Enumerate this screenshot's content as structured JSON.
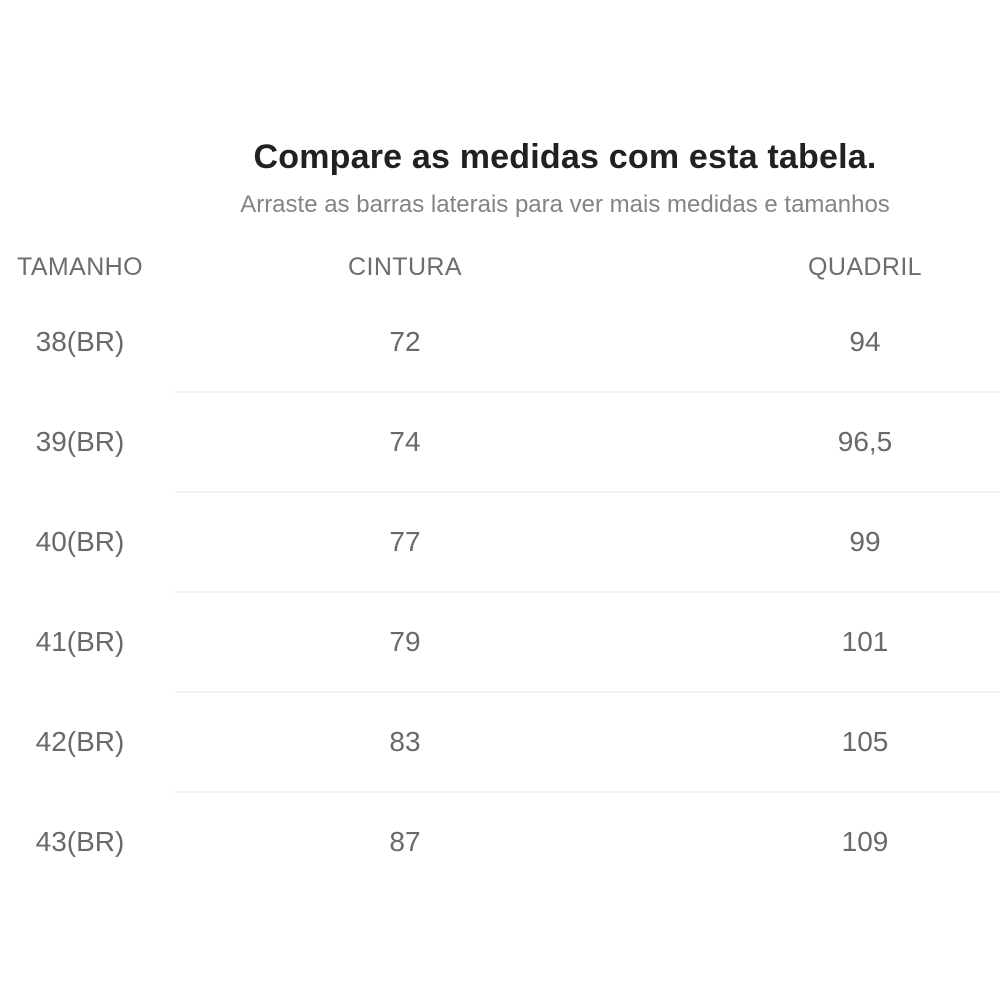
{
  "header": {
    "title": "Compare as medidas com esta tabela.",
    "subtitle": "Arraste as barras laterais para ver mais medidas e tamanhos"
  },
  "table": {
    "columns": [
      "TAMANHO",
      "CINTURA",
      "QUADRIL"
    ],
    "rows": [
      [
        "38(BR)",
        "72",
        "94"
      ],
      [
        "39(BR)",
        "74",
        "96,5"
      ],
      [
        "40(BR)",
        "77",
        "99"
      ],
      [
        "41(BR)",
        "79",
        "101"
      ],
      [
        "42(BR)",
        "83",
        "105"
      ],
      [
        "43(BR)",
        "87",
        "109"
      ]
    ]
  },
  "colors": {
    "title_text": "#212121",
    "subtitle_text": "#848484",
    "header_text": "#6d6d6d",
    "value_text": "#696969",
    "row_divider": "#f0f0f0",
    "background": "#ffffff"
  }
}
